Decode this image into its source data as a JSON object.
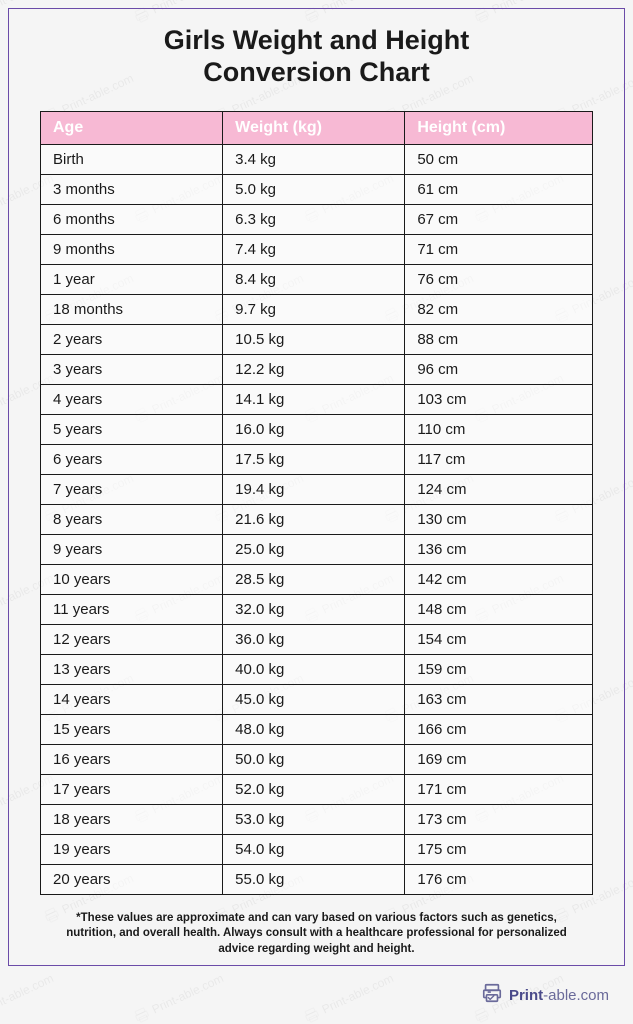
{
  "title_line1": "Girls Weight and Height",
  "title_line2": "Conversion Chart",
  "table": {
    "columns": [
      "Age",
      "Weight (kg)",
      "Height (cm)"
    ],
    "header_bg": "#f7b9d4",
    "header_fg": "#ffffff",
    "border_color": "#1a1a1a",
    "rows": [
      [
        "Birth",
        "3.4 kg",
        "50 cm"
      ],
      [
        "3 months",
        "5.0 kg",
        "61 cm"
      ],
      [
        "6 months",
        "6.3 kg",
        "67 cm"
      ],
      [
        "9 months",
        "7.4 kg",
        "71 cm"
      ],
      [
        "1 year",
        "8.4 kg",
        "76 cm"
      ],
      [
        "18 months",
        "9.7 kg",
        "82 cm"
      ],
      [
        "2 years",
        "10.5 kg",
        "88 cm"
      ],
      [
        "3 years",
        "12.2 kg",
        "96 cm"
      ],
      [
        "4 years",
        "14.1 kg",
        "103 cm"
      ],
      [
        "5 years",
        "16.0 kg",
        "110 cm"
      ],
      [
        "6 years",
        "17.5 kg",
        "117 cm"
      ],
      [
        "7 years",
        "19.4 kg",
        "124 cm"
      ],
      [
        "8 years",
        "21.6 kg",
        "130 cm"
      ],
      [
        "9 years",
        "25.0 kg",
        "136 cm"
      ],
      [
        "10 years",
        "28.5 kg",
        "142 cm"
      ],
      [
        "11 years",
        "32.0 kg",
        "148 cm"
      ],
      [
        "12 years",
        "36.0 kg",
        "154 cm"
      ],
      [
        "13 years",
        "40.0 kg",
        "159 cm"
      ],
      [
        "14 years",
        "45.0 kg",
        "163 cm"
      ],
      [
        "15 years",
        "48.0 kg",
        "166 cm"
      ],
      [
        "16 years",
        "50.0 kg",
        "169 cm"
      ],
      [
        "17 years",
        "52.0 kg",
        "171 cm"
      ],
      [
        "18 years",
        "53.0 kg",
        "173 cm"
      ],
      [
        "19 years",
        "54.0 kg",
        "175 cm"
      ],
      [
        "20 years",
        "55.0 kg",
        "176 cm"
      ]
    ]
  },
  "footnote": "*These values are approximate and can vary based on various factors such as genetics, nutrition, and overall health. Always consult with a healthcare professional for personalized advice regarding weight and height.",
  "footer": {
    "brand_bold": "Print",
    "brand_rest": "-able.com"
  },
  "watermark_text": "Print-able.com",
  "frame_border_color": "#6b4ba8",
  "background_color": "#f5f5f5"
}
